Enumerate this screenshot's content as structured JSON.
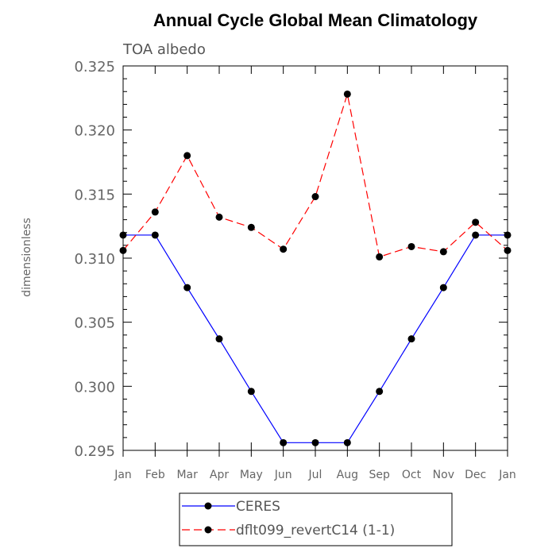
{
  "chart_data": {
    "type": "line",
    "title": "Annual Cycle Global Mean Climatology",
    "subtitle": "TOA albedo",
    "xlabel": "",
    "ylabel": "dimensionless",
    "categories": [
      "Jan",
      "Feb",
      "Mar",
      "Apr",
      "May",
      "Jun",
      "Jul",
      "Aug",
      "Sep",
      "Oct",
      "Nov",
      "Dec",
      "Jan"
    ],
    "ylim": [
      0.295,
      0.325
    ],
    "yticks": [
      "0.295",
      "0.300",
      "0.305",
      "0.310",
      "0.315",
      "0.320",
      "0.325"
    ],
    "grid": false,
    "legend_position": "bottom",
    "series": [
      {
        "name": "CERES",
        "color": "#0000ff",
        "dash": "solid",
        "values": [
          0.3118,
          0.3118,
          0.3077,
          0.3037,
          0.2996,
          0.2956,
          0.2956,
          0.2956,
          0.2996,
          0.3037,
          0.3077,
          0.3118,
          0.3118
        ]
      },
      {
        "name": "dflt099_revertC14 (1-1)",
        "color": "#ff0000",
        "dash": "dashed",
        "values": [
          0.3106,
          0.3136,
          0.318,
          0.3132,
          0.3124,
          0.3107,
          0.3148,
          0.3228,
          0.3101,
          0.3109,
          0.3105,
          0.3128,
          0.3106
        ]
      }
    ]
  }
}
